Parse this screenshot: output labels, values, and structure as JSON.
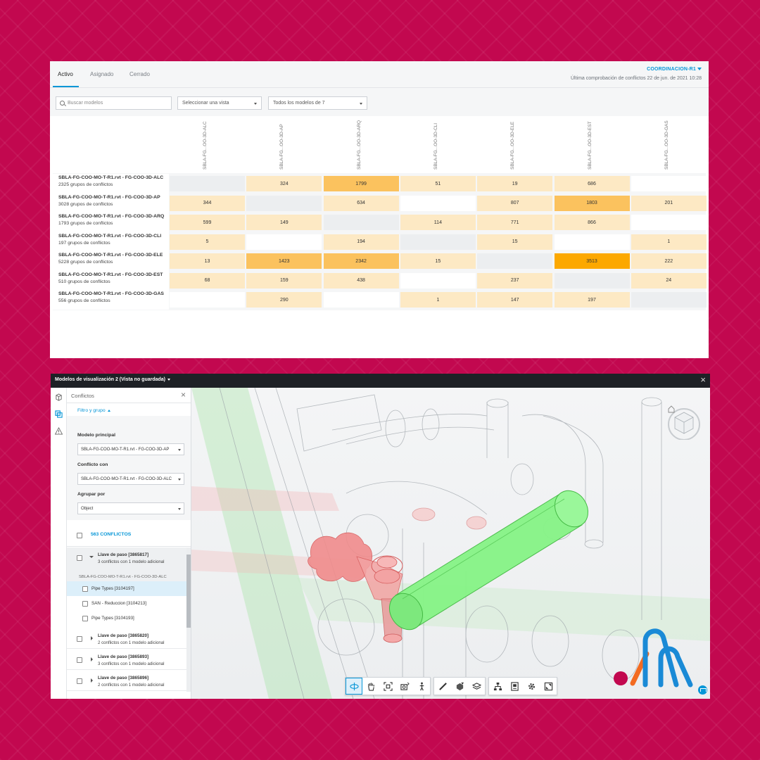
{
  "matrix": {
    "tabs": [
      "Activo",
      "Asignado",
      "Cerrado"
    ],
    "active_tab": 0,
    "coordination": "COORDINACION-R1",
    "last_check": "Última comprobación de conflictos 22 de jun. de 2021 10:28",
    "search_placeholder": "Buscar modelos",
    "view_select": "Seleccionar una vista",
    "models_select": "Todos los modelos de 7",
    "columns": [
      "SBLA-FG...OO-3D-ALC",
      "SBLA-FG...OO-3D-AP",
      "SBLA-FG...OO-3D-ARQ",
      "SBLA-FG...OO-3D-CLI",
      "SBLA-FG...OO-3D-ELE",
      "SBLA-FG...OO-3D-EST",
      "SBLA-FG...OO-3D-GAS"
    ],
    "rows": [
      {
        "name": "SBLA-FG-COO-MO-T-R1.rvt - FG-COO-3D-ALC",
        "groups": "2325 grupos de conflictos",
        "cells": [
          null,
          324,
          1799,
          51,
          19,
          686,
          ""
        ]
      },
      {
        "name": "SBLA-FG-COO-MO-T-R1.rvt - FG-COO-3D-AP",
        "groups": "3028 grupos de conflictos",
        "cells": [
          344,
          null,
          634,
          "",
          807,
          1803,
          201
        ]
      },
      {
        "name": "SBLA-FG-COO-MO-T-R1.rvt - FG-COO-3D-ARQ",
        "groups": "1793 grupos de conflictos",
        "cells": [
          599,
          149,
          null,
          114,
          771,
          866,
          ""
        ]
      },
      {
        "name": "SBLA-FG-COO-MO-T-R1.rvt - FG-COO-3D-CLI",
        "groups": "197 grupos de conflictos",
        "cells": [
          5,
          "",
          194,
          null,
          15,
          "",
          1
        ]
      },
      {
        "name": "SBLA-FG-COO-MO-T-R1.rvt - FG-COO-3D-ELE",
        "groups": "5228 grupos de conflictos",
        "cells": [
          13,
          1423,
          2342,
          15,
          null,
          3513,
          222
        ]
      },
      {
        "name": "SBLA-FG-COO-MO-T-R1.rvt - FG-COO-3D-EST",
        "groups": "510 grupos de conflictos",
        "cells": [
          68,
          159,
          438,
          "",
          237,
          null,
          24
        ]
      },
      {
        "name": "SBLA-FG-COO-MO-T-R1.rvt - FG-COO-3D-GAS",
        "groups": "556 grupos de conflictos",
        "cells": [
          "",
          290,
          "",
          1,
          147,
          197,
          null
        ]
      }
    ],
    "colors": {
      "empty": "#ffffff",
      "diagonal": "#eceef0",
      "low": "#fde9c4",
      "mid": "#fdd487",
      "high": "#fbc25e",
      "max": "#fca800"
    }
  },
  "viewer": {
    "title": "Modelos de visualización 2 (Vista no guardada)",
    "panel_title": "Conflictos",
    "filter_toggle": "Filtro y grupo",
    "main_model_label": "Modelo principal",
    "main_model_value": "SBLA-FG-COO-MO-T-R1.rvt - FG-COO-3D-AP",
    "conflict_with_label": "Conflicto con",
    "conflict_with_value": "SBLA-FG-COO-MO-T-R1.rvt - FG-COO-3D-ALC",
    "group_by_label": "Agrupar por",
    "group_by_value": "Object",
    "all_conflicts": "563 CONFLICTOS",
    "sub_model_label": "SBLA-FG-COO-MO-T-R1.rvt - FG-COO-3D-ALC",
    "groups": [
      {
        "name": "Llave de paso [3865817]",
        "sub": "3 conflictos con 1 modelo adicional",
        "open": true
      },
      {
        "name": "Llave de paso [3865820]",
        "sub": "2 conflictos con 1 modelo adicional",
        "open": false
      },
      {
        "name": "Llave de paso [3865893]",
        "sub": "3 conflictos con 1 modelo adicional",
        "open": false
      },
      {
        "name": "Llave de paso [3865896]",
        "sub": "2 conflictos con 1 modelo adicional",
        "open": false
      }
    ],
    "elements": [
      {
        "name": "Pipe Types [3104197]",
        "selected": true
      },
      {
        "name": "SAN - Reduccion [3104213]",
        "selected": false
      },
      {
        "name": "Pipe Types [3104193]",
        "selected": false
      }
    ],
    "icons": {
      "rail": [
        "cube-icon",
        "clash-icon",
        "warning-icon"
      ],
      "toolbar": [
        "orbit-icon",
        "pan-icon",
        "fit-view-icon",
        "camera-icon",
        "walk-icon",
        "measure-icon",
        "section-icon",
        "layers-icon",
        "model-browser-icon",
        "properties-icon",
        "settings-icon",
        "fullscreen-icon"
      ]
    },
    "accent": "#0696d7"
  }
}
